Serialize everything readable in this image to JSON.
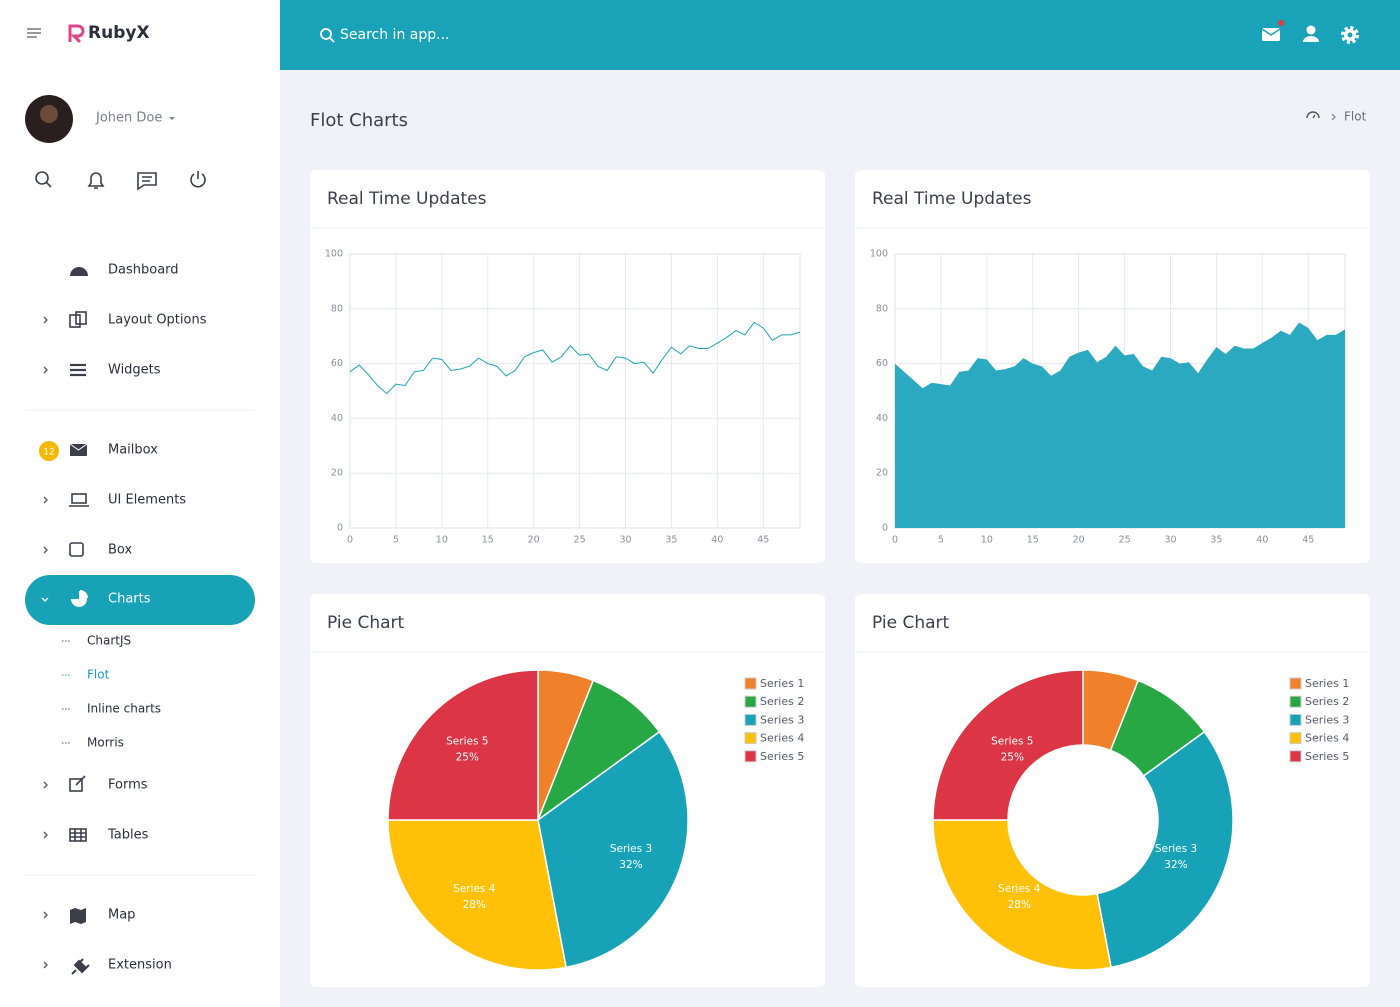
{
  "sidebar": {
    "brand": "RubyX",
    "user": "Johen Doe",
    "menu": [
      "Dashboard",
      "Layout Options",
      "Widgets",
      "Mailbox",
      "UI Elements",
      "Box",
      "Charts",
      "Forms",
      "Tables",
      "Map",
      "Extension"
    ],
    "mailbox_badge": 12,
    "submenu": [
      "ChartJS",
      "Flot",
      "Inline charts",
      "Morris"
    ]
  },
  "topbar": {
    "search_placeholder": "Search in app..."
  },
  "page": {
    "title": "Flot Charts",
    "breadcrumb": "Flot"
  },
  "chart_data": [
    {
      "type": "line",
      "title": "Real Time Updates",
      "color": "#1aa3b8",
      "x": [
        0,
        1,
        2,
        3,
        4,
        5,
        6,
        7,
        8,
        9,
        10,
        11,
        12,
        13,
        14,
        15,
        16,
        17,
        18,
        19,
        20,
        21,
        22,
        23,
        24,
        25,
        26,
        27,
        28,
        29,
        30,
        31,
        32,
        33,
        34,
        35,
        36,
        37,
        38,
        39,
        40,
        41,
        42,
        43,
        44,
        45,
        46,
        47,
        48,
        49
      ],
      "values": [
        57,
        59.5,
        56,
        52,
        49,
        52.5,
        52,
        57,
        57.5,
        62,
        61.5,
        57.5,
        58,
        59,
        62,
        60,
        59,
        55.5,
        57.5,
        62.5,
        64,
        65,
        60.5,
        62.5,
        66.5,
        63,
        63.5,
        59,
        57.5,
        62.5,
        62,
        60,
        60.5,
        56.5,
        61.5,
        66,
        63.5,
        66.5,
        65.5,
        65.5,
        67.5,
        69.5,
        72,
        70.5,
        75,
        73,
        68.5,
        70.5,
        70.5,
        71.5
      ],
      "xlim": [
        0,
        49
      ],
      "xticks": [
        0,
        5,
        10,
        15,
        20,
        25,
        30,
        35,
        40,
        45
      ],
      "ylim": [
        0,
        100
      ],
      "yticks": [
        0,
        20,
        40,
        60,
        80,
        100
      ],
      "grid": true
    },
    {
      "type": "area",
      "title": "Real Time Updates",
      "color": "#2aa9c0",
      "x": [
        0,
        1,
        2,
        3,
        4,
        5,
        6,
        7,
        8,
        9,
        10,
        11,
        12,
        13,
        14,
        15,
        16,
        17,
        18,
        19,
        20,
        21,
        22,
        23,
        24,
        25,
        26,
        27,
        28,
        29,
        30,
        31,
        32,
        33,
        34,
        35,
        36,
        37,
        38,
        39,
        40,
        41,
        42,
        43,
        44,
        45,
        46,
        47,
        48,
        49
      ],
      "values": [
        60,
        57,
        54,
        51,
        53,
        52.5,
        52,
        57,
        57.5,
        62,
        61.5,
        57.5,
        58,
        59,
        62,
        60,
        59,
        55.5,
        57.5,
        62.5,
        64,
        65,
        60.5,
        62.5,
        66.5,
        63,
        63.5,
        59,
        57.5,
        62.5,
        62,
        60,
        60.5,
        56.5,
        61.5,
        66,
        63.5,
        66.5,
        65.5,
        65.5,
        67.5,
        69.5,
        72,
        70.5,
        75,
        73,
        68.5,
        70.5,
        70.5,
        72.5
      ],
      "xlim": [
        0,
        49
      ],
      "xticks": [
        0,
        5,
        10,
        15,
        20,
        25,
        30,
        35,
        40,
        45
      ],
      "ylim": [
        0,
        100
      ],
      "yticks": [
        0,
        20,
        40,
        60,
        80,
        100
      ],
      "grid": true
    },
    {
      "type": "pie",
      "title": "Pie Chart",
      "categories": [
        "Series 1",
        "Series 2",
        "Series 3",
        "Series 4",
        "Series 5"
      ],
      "values": [
        6,
        9,
        32,
        28,
        25
      ],
      "value_labels": [
        null,
        null,
        "32%",
        "28%",
        "25%"
      ],
      "colors": [
        "#f0802a",
        "#28a745",
        "#17a2b8",
        "#ffc107",
        "#dc3545"
      ]
    },
    {
      "type": "donut",
      "title": "Pie Chart",
      "categories": [
        "Series 1",
        "Series 2",
        "Series 3",
        "Series 4",
        "Series 5"
      ],
      "values": [
        6,
        9,
        32,
        28,
        25
      ],
      "value_labels": [
        null,
        null,
        "32%",
        "28%",
        "25%"
      ],
      "colors": [
        "#f0802a",
        "#28a745",
        "#17a2b8",
        "#ffc107",
        "#dc3545"
      ]
    }
  ]
}
